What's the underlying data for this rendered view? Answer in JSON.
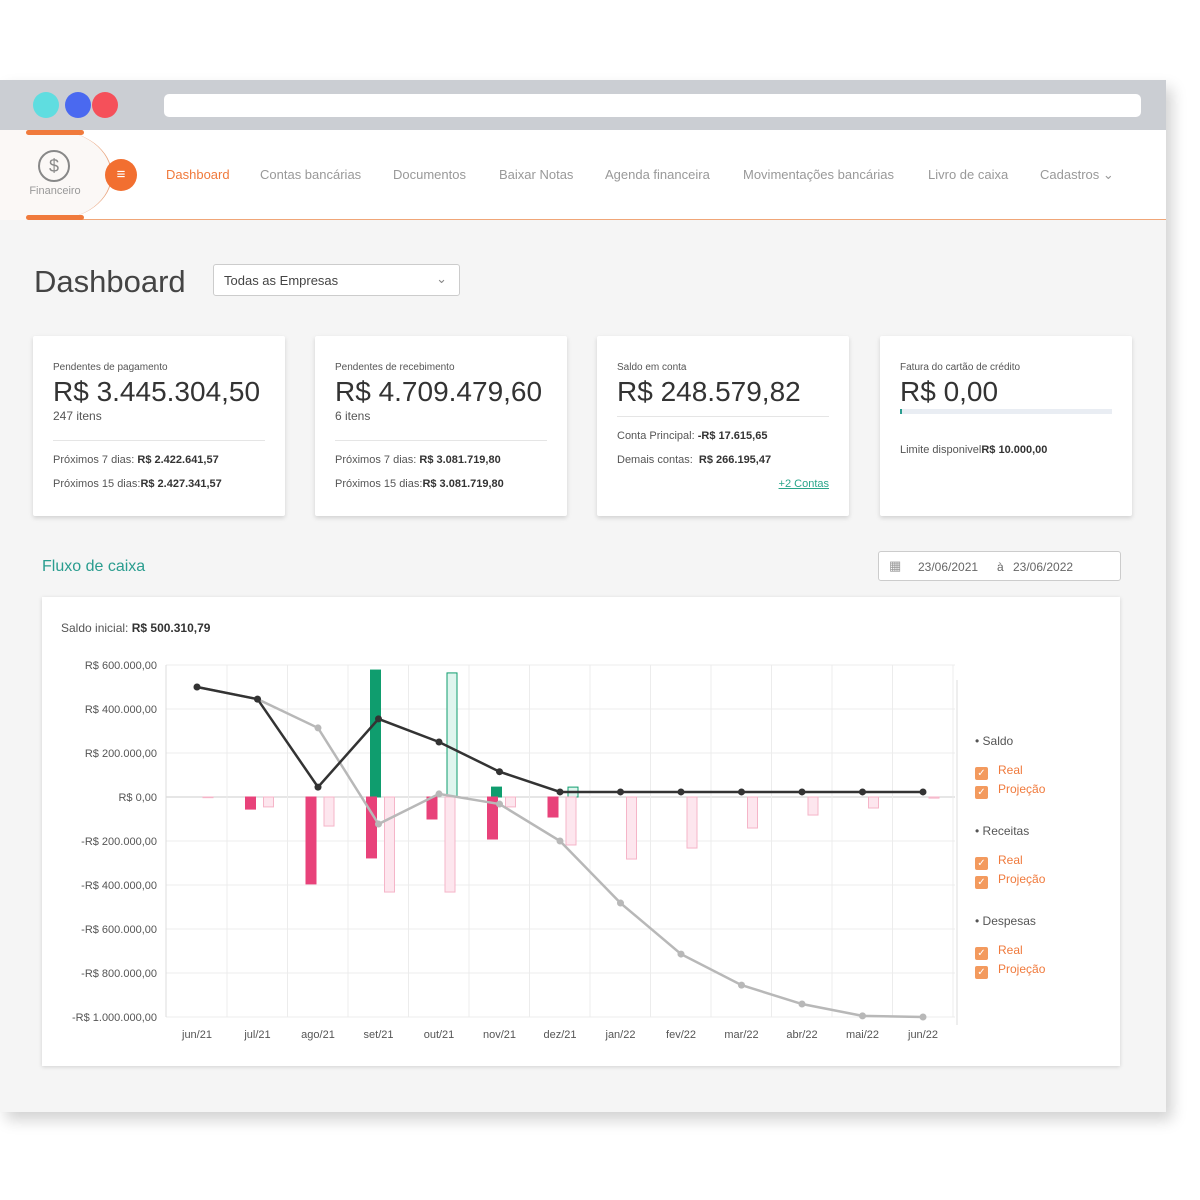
{
  "colors": {
    "accent": "#f07a3c",
    "teal": "#2a9d8f",
    "receita": "#0f9d6e",
    "despesa": "#e8427a",
    "saldo": "#333333",
    "projecao": "#b8b8b8"
  },
  "nav": {
    "module_label": "Financeiro",
    "items": [
      "Dashboard",
      "Contas bancárias",
      "Documentos",
      "Baixar Notas",
      "Agenda financeira",
      "Movimentações bancárias",
      "Livro de caixa",
      "Cadastros"
    ]
  },
  "page": {
    "title": "Dashboard",
    "company_select": "Todas as Empresas"
  },
  "cards": [
    {
      "label": "Pendentes de pagamento",
      "value": "R$ 3.445.304,50",
      "sub": "247 itens",
      "row1_label": "Próximos 7 dias: ",
      "row1_value": "R$ 2.422.641,57",
      "row2_label": "Próximos 15 dias:",
      "row2_value": "R$ 2.427.341,57"
    },
    {
      "label": "Pendentes de recebimento",
      "value": "R$ 4.709.479,60",
      "sub": "6 itens",
      "row1_label": "Próximos 7 dias: ",
      "row1_value": "R$ 3.081.719,80",
      "row2_label": "Próximos 15 dias:",
      "row2_value": "R$ 3.081.719,80"
    },
    {
      "label": "Saldo em conta",
      "value": "R$ 248.579,82",
      "row1_label": "Conta Principal: ",
      "row1_value": "-R$ 17.615,65",
      "row2_label": "Demais contas:  ",
      "row2_value": "R$ 266.195,47",
      "link": "+2 Contas"
    },
    {
      "label": "Fatura do cartão de crédito",
      "value": "R$ 0,00",
      "usage_fraction": 0.0,
      "row1_label": "Limite disponivel",
      "row1_value": "R$ 10.000,00"
    }
  ],
  "cashflow": {
    "title": "Fluxo de caixa",
    "date_from": "23/06/2021",
    "date_sep": "à",
    "date_to": "23/06/2022",
    "saldo_inicial_label": "Saldo inicial:",
    "saldo_inicial_value": "R$ 500.310,79"
  },
  "legend": {
    "groups": [
      {
        "name": "Saldo",
        "items": [
          "Real",
          "Projeção"
        ]
      },
      {
        "name": "Receitas",
        "items": [
          "Real",
          "Projeção"
        ]
      },
      {
        "name": "Despesas",
        "items": [
          "Real",
          "Projeção"
        ]
      }
    ]
  },
  "chart_data": {
    "type": "bar+line",
    "categories": [
      "jun/21",
      "jul/21",
      "ago/21",
      "set/21",
      "out/21",
      "nov/21",
      "dez/21",
      "jan/22",
      "fev/22",
      "mar/22",
      "abr/22",
      "mai/22",
      "jun/22"
    ],
    "ylim": [
      -1000000,
      600000
    ],
    "yticks": [
      600000,
      400000,
      200000,
      0,
      -200000,
      -400000,
      -600000,
      -800000,
      -1000000
    ],
    "ytick_labels": [
      "R$ 600.000,00",
      "R$ 400.000,00",
      "R$ 200.000,00",
      "R$ 0,00",
      "-R$ 200.000,00",
      "-R$ 400.000,00",
      "-R$ 600.000,00",
      "-R$ 800.000,00",
      "-R$ 1.000.000,00"
    ],
    "grid": true,
    "legend_position": "right",
    "series": [
      {
        "name": "Saldo Real",
        "kind": "line",
        "values": [
          500000,
          445000,
          45000,
          355000,
          250000,
          115000,
          23000,
          23000,
          23000,
          23000,
          23000,
          23000,
          23000
        ]
      },
      {
        "name": "Saldo Projeção",
        "kind": "line",
        "values": [
          500000,
          445000,
          314000,
          -123000,
          14000,
          -32000,
          -200000,
          -482000,
          -714000,
          -855000,
          -941000,
          -995000,
          -1000000
        ]
      },
      {
        "name": "Receitas Real",
        "kind": "bar",
        "values": [
          0,
          0,
          0,
          577000,
          0,
          45000,
          0,
          0,
          0,
          0,
          0,
          0,
          0
        ]
      },
      {
        "name": "Receitas Projeção",
        "kind": "bar",
        "values": [
          0,
          0,
          0,
          0,
          564000,
          0,
          45000,
          0,
          0,
          0,
          0,
          0,
          0
        ]
      },
      {
        "name": "Despesas Real",
        "kind": "bar",
        "values": [
          0,
          -55000,
          -395000,
          -277000,
          -100000,
          -191000,
          -91000,
          0,
          0,
          0,
          0,
          0,
          0
        ]
      },
      {
        "name": "Despesas Projeção",
        "kind": "bar",
        "values": [
          -3000,
          -45000,
          -132000,
          -432000,
          -432000,
          -45000,
          -218000,
          -282000,
          -232000,
          -141000,
          -82000,
          -50000,
          -5000
        ]
      }
    ]
  }
}
